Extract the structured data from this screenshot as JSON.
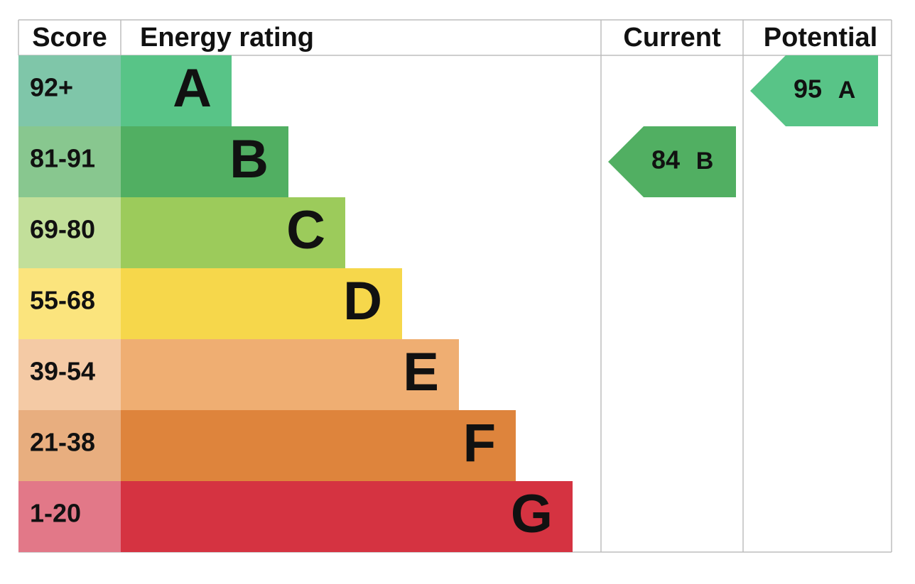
{
  "header": {
    "score": "Score",
    "rating": "Energy rating",
    "current": "Current",
    "potential": "Potential"
  },
  "bands": [
    {
      "score": "92+",
      "letter": "A",
      "color": "#58c487",
      "score_color": "#7fc6a9"
    },
    {
      "score": "81-91",
      "letter": "B",
      "color": "#51af62",
      "score_color": "#88c78f"
    },
    {
      "score": "69-80",
      "letter": "C",
      "color": "#9ccb5b",
      "score_color": "#c2df9a"
    },
    {
      "score": "55-68",
      "letter": "D",
      "color": "#f6d74b",
      "score_color": "#fbe47d"
    },
    {
      "score": "39-54",
      "letter": "E",
      "color": "#efae72",
      "score_color": "#f4caa5"
    },
    {
      "score": "21-38",
      "letter": "F",
      "color": "#de843c",
      "score_color": "#e8ae7f"
    },
    {
      "score": "1-20",
      "letter": "G",
      "color": "#d53341",
      "score_color": "#e27888"
    }
  ],
  "current": {
    "score": "84",
    "band": "B"
  },
  "potential": {
    "score": "95",
    "band": "A"
  }
}
